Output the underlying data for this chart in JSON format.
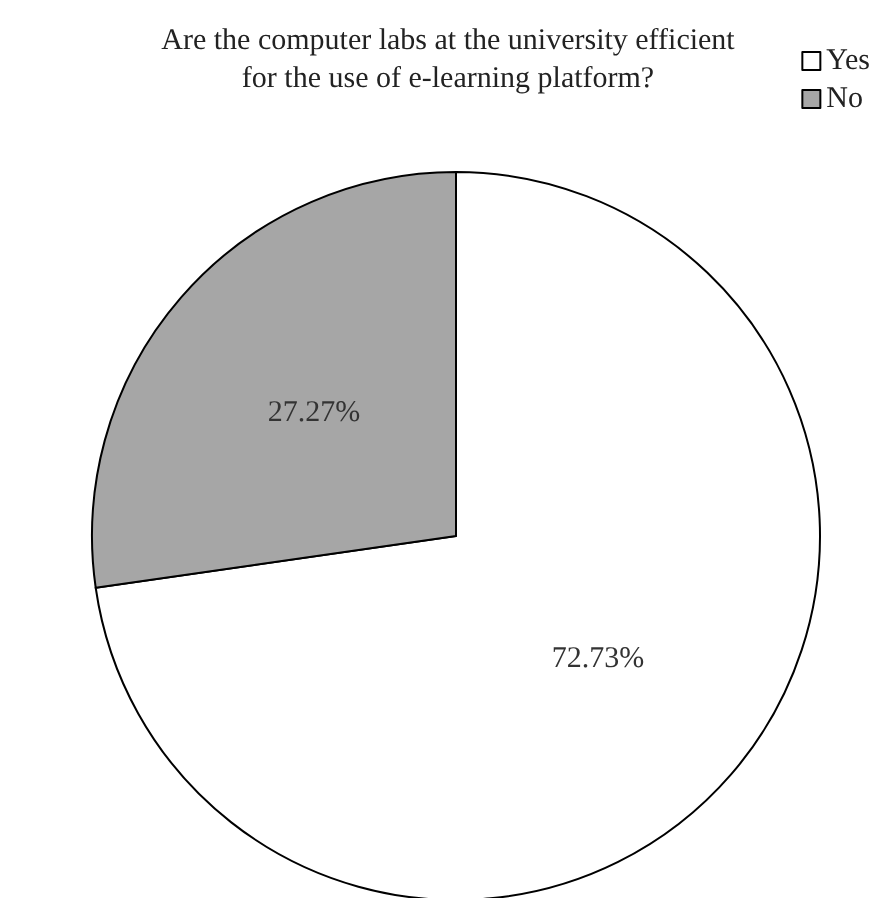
{
  "chart_data": {
    "type": "pie",
    "title": "Are the computer labs at the university efficient\nfor the use of e-learning platform?",
    "categories": [
      "Yes",
      "No"
    ],
    "values": [
      72.73,
      27.27
    ],
    "colors": [
      "#ffffff",
      "#a6a6a6"
    ],
    "value_labels": [
      "72.73%",
      "27.27%"
    ],
    "legend": "top right"
  }
}
